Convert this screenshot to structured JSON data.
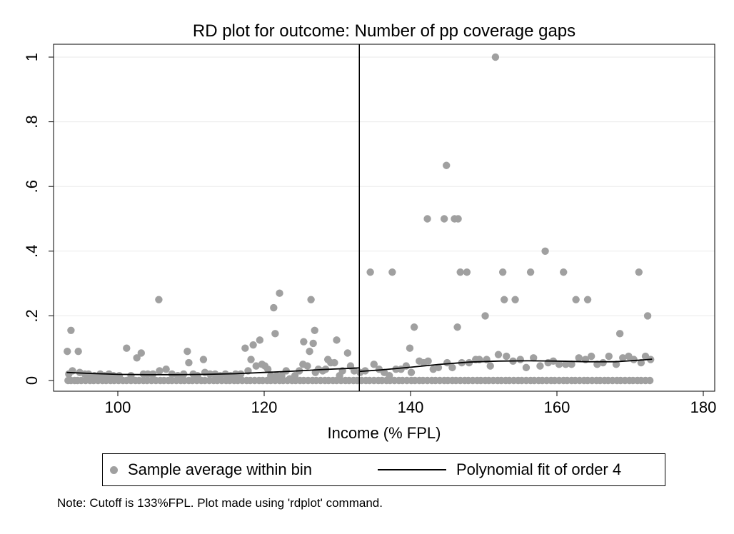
{
  "title": "RD plot for outcome: Number of pp coverage gaps",
  "note": "Note: Cutoff is 133%FPL. Plot made using 'rdplot' command.",
  "legend": {
    "scatter_label": "Sample average within bin",
    "line_label": "Polynomial fit of order 4"
  },
  "colors": {
    "scatter": "#a0a0a0",
    "fit_line": "#000000",
    "grid": "#eaeaea"
  },
  "chart_data": {
    "type": "scatter",
    "title": "RD plot for outcome: Number of pp coverage gaps",
    "xlabel": "Income (% FPL)",
    "ylabel": "",
    "xlim": [
      92,
      182
    ],
    "ylim": [
      -0.02,
      1.05
    ],
    "xticks": [
      100,
      120,
      140,
      160,
      180
    ],
    "xtick_labels": [
      "100",
      "120",
      "140",
      "160",
      "180"
    ],
    "yticks": [
      0,
      0.2,
      0.4,
      0.6,
      0.8,
      1
    ],
    "ytick_labels": [
      "0",
      ".2",
      ".4",
      ".6",
      ".8",
      "1"
    ],
    "cutoff": 133,
    "grid": true,
    "legend_position": "bottom",
    "series": [
      {
        "name": "Sample average within bin",
        "type": "scatter",
        "zero_points_x": [
          93.2,
          93.6,
          94.1,
          94.5,
          95.0,
          95.6,
          96.2,
          96.7,
          97.3,
          97.9,
          98.4,
          99.0,
          99.5,
          100.1,
          100.7,
          101.2,
          101.8,
          102.4,
          102.9,
          103.5,
          104.0,
          104.6,
          105.2,
          105.8,
          106.3,
          106.9,
          107.4,
          108.0,
          108.6,
          109.1,
          109.7,
          110.2,
          110.8,
          111.4,
          111.9,
          112.5,
          113.1,
          113.6,
          114.2,
          114.8,
          115.3,
          115.9,
          116.4,
          117.0,
          117.6,
          118.1,
          118.7,
          119.3,
          119.8,
          120.4,
          120.9,
          121.5,
          122.1,
          122.6,
          123.2,
          123.8,
          124.3,
          124.9,
          125.4,
          126.0,
          126.6,
          127.1,
          127.7,
          128.3,
          128.8,
          129.4,
          129.9,
          130.5,
          131.1,
          131.6,
          132.2,
          132.7,
          133.3,
          133.9,
          134.4,
          135.0,
          135.6,
          136.1,
          136.7,
          137.2,
          137.8,
          138.4,
          138.9,
          139.5,
          140.1,
          140.6,
          141.2,
          141.7,
          142.3,
          142.9,
          143.4,
          144.0,
          144.6,
          145.1,
          145.7,
          146.2,
          146.8,
          147.4,
          147.9,
          148.5,
          149.1,
          149.6,
          150.2,
          150.7,
          151.3,
          151.9,
          152.4,
          153.0,
          153.5,
          154.1,
          154.7,
          155.2,
          155.8,
          156.4,
          156.9,
          157.5,
          158.0,
          158.6,
          159.2,
          159.7,
          160.3,
          160.9,
          161.4,
          162.0,
          162.5,
          163.1,
          163.7,
          164.2,
          164.8,
          165.4,
          165.9,
          166.5,
          167.0,
          167.6,
          168.2,
          168.7,
          169.3,
          169.9,
          170.4,
          171.0,
          171.5,
          172.1,
          172.7
        ],
        "points": [
          [
            93.1,
            0.09
          ],
          [
            93.3,
            0.02
          ],
          [
            93.6,
            0.155
          ],
          [
            93.8,
            0.03
          ],
          [
            94.6,
            0.09
          ],
          [
            94.8,
            0.025
          ],
          [
            95.5,
            0.02
          ],
          [
            96.0,
            0.02
          ],
          [
            96.8,
            0.015
          ],
          [
            97.6,
            0.02
          ],
          [
            98.2,
            0.015
          ],
          [
            98.8,
            0.02
          ],
          [
            99.4,
            0.015
          ],
          [
            100.2,
            0.015
          ],
          [
            101.2,
            0.1
          ],
          [
            101.8,
            0.015
          ],
          [
            102.6,
            0.07
          ],
          [
            103.2,
            0.085
          ],
          [
            103.5,
            0.02
          ],
          [
            104.1,
            0.02
          ],
          [
            104.8,
            0.02
          ],
          [
            105.6,
            0.25
          ],
          [
            105.7,
            0.03
          ],
          [
            106.6,
            0.035
          ],
          [
            107.4,
            0.02
          ],
          [
            108.2,
            0.015
          ],
          [
            109.0,
            0.02
          ],
          [
            109.5,
            0.09
          ],
          [
            109.7,
            0.055
          ],
          [
            110.3,
            0.02
          ],
          [
            110.9,
            0.015
          ],
          [
            111.7,
            0.065
          ],
          [
            111.9,
            0.025
          ],
          [
            112.6,
            0.02
          ],
          [
            113.3,
            0.02
          ],
          [
            114.0,
            0.015
          ],
          [
            114.7,
            0.02
          ],
          [
            115.4,
            0.015
          ],
          [
            116.1,
            0.02
          ],
          [
            116.8,
            0.02
          ],
          [
            117.4,
            0.1
          ],
          [
            117.8,
            0.03
          ],
          [
            118.2,
            0.065
          ],
          [
            118.5,
            0.11
          ],
          [
            118.9,
            0.045
          ],
          [
            119.4,
            0.125
          ],
          [
            119.7,
            0.05
          ],
          [
            120.1,
            0.045
          ],
          [
            120.5,
            0.035
          ],
          [
            120.9,
            0.015
          ],
          [
            121.3,
            0.225
          ],
          [
            121.5,
            0.145
          ],
          [
            121.7,
            0.015
          ],
          [
            122.1,
            0.27
          ],
          [
            122.4,
            0.015
          ],
          [
            123.0,
            0.03
          ],
          [
            123.5,
            0.005
          ],
          [
            124.2,
            0.015
          ],
          [
            124.8,
            0.03
          ],
          [
            125.3,
            0.05
          ],
          [
            125.4,
            0.12
          ],
          [
            125.9,
            0.045
          ],
          [
            126.2,
            0.09
          ],
          [
            126.4,
            0.25
          ],
          [
            126.7,
            0.115
          ],
          [
            126.9,
            0.155
          ],
          [
            127.0,
            0.025
          ],
          [
            127.4,
            0.035
          ],
          [
            128.0,
            0.03
          ],
          [
            128.4,
            0.035
          ],
          [
            128.7,
            0.065
          ],
          [
            129.1,
            0.055
          ],
          [
            129.6,
            0.055
          ],
          [
            129.9,
            0.125
          ],
          [
            130.3,
            0.015
          ],
          [
            130.7,
            0.03
          ],
          [
            131.4,
            0.085
          ],
          [
            131.8,
            0.045
          ],
          [
            132.3,
            0.03
          ],
          [
            133.1,
            0.025
          ],
          [
            133.8,
            0.03
          ],
          [
            134.5,
            0.335
          ],
          [
            135.0,
            0.05
          ],
          [
            135.7,
            0.035
          ],
          [
            136.4,
            0.025
          ],
          [
            137.1,
            0.015
          ],
          [
            137.5,
            0.335
          ],
          [
            138.0,
            0.035
          ],
          [
            138.7,
            0.035
          ],
          [
            139.4,
            0.045
          ],
          [
            139.9,
            0.1
          ],
          [
            140.1,
            0.025
          ],
          [
            140.5,
            0.165
          ],
          [
            141.2,
            0.06
          ],
          [
            141.8,
            0.055
          ],
          [
            142.3,
            0.5
          ],
          [
            142.4,
            0.06
          ],
          [
            143.1,
            0.035
          ],
          [
            143.8,
            0.04
          ],
          [
            144.6,
            0.5
          ],
          [
            144.9,
            0.665
          ],
          [
            145.0,
            0.055
          ],
          [
            145.7,
            0.04
          ],
          [
            146.0,
            0.5
          ],
          [
            146.5,
            0.5
          ],
          [
            146.4,
            0.165
          ],
          [
            146.8,
            0.335
          ],
          [
            147.0,
            0.055
          ],
          [
            147.7,
            0.335
          ],
          [
            148.0,
            0.055
          ],
          [
            148.9,
            0.065
          ],
          [
            149.4,
            0.065
          ],
          [
            150.2,
            0.2
          ],
          [
            150.4,
            0.065
          ],
          [
            150.9,
            0.045
          ],
          [
            151.6,
            1.0
          ],
          [
            152.0,
            0.08
          ],
          [
            152.6,
            0.335
          ],
          [
            152.8,
            0.25
          ],
          [
            153.1,
            0.075
          ],
          [
            154.0,
            0.06
          ],
          [
            154.3,
            0.25
          ],
          [
            155.0,
            0.065
          ],
          [
            155.8,
            0.04
          ],
          [
            156.4,
            0.335
          ],
          [
            156.8,
            0.07
          ],
          [
            157.7,
            0.045
          ],
          [
            158.4,
            0.4
          ],
          [
            158.8,
            0.055
          ],
          [
            159.5,
            0.06
          ],
          [
            160.3,
            0.05
          ],
          [
            160.9,
            0.335
          ],
          [
            161.2,
            0.05
          ],
          [
            162.0,
            0.05
          ],
          [
            162.6,
            0.25
          ],
          [
            163.0,
            0.07
          ],
          [
            163.9,
            0.065
          ],
          [
            164.2,
            0.25
          ],
          [
            164.7,
            0.075
          ],
          [
            165.5,
            0.05
          ],
          [
            166.3,
            0.055
          ],
          [
            167.1,
            0.075
          ],
          [
            168.1,
            0.05
          ],
          [
            168.6,
            0.145
          ],
          [
            169.0,
            0.07
          ],
          [
            169.8,
            0.075
          ],
          [
            170.5,
            0.065
          ],
          [
            171.2,
            0.335
          ],
          [
            171.5,
            0.055
          ],
          [
            172.1,
            0.075
          ],
          [
            172.4,
            0.2
          ],
          [
            172.8,
            0.065
          ]
        ]
      },
      {
        "name": "Polynomial fit of order 4",
        "type": "line",
        "left": {
          "x": [
            93,
            96,
            100,
            104,
            108,
            112,
            116,
            120,
            124,
            128,
            132,
            133
          ],
          "y": [
            0.025,
            0.022,
            0.019,
            0.018,
            0.018,
            0.019,
            0.021,
            0.025,
            0.029,
            0.034,
            0.038,
            0.039
          ]
        },
        "right": {
          "x": [
            133,
            136,
            140,
            144,
            148,
            152,
            156,
            160,
            164,
            168,
            172,
            173
          ],
          "y": [
            0.028,
            0.033,
            0.041,
            0.05,
            0.057,
            0.06,
            0.061,
            0.06,
            0.058,
            0.058,
            0.064,
            0.066
          ]
        }
      }
    ]
  }
}
